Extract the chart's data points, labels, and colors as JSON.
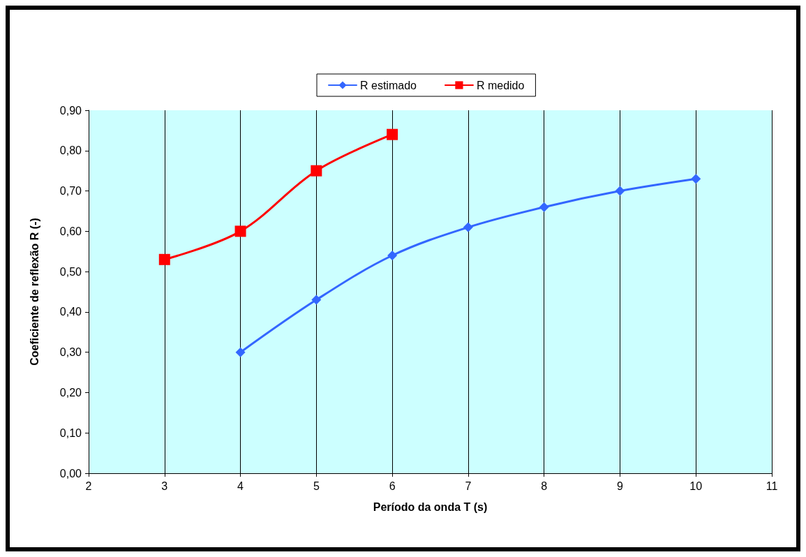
{
  "chart_data": {
    "type": "line",
    "xlabel": "Período da onda T (s)",
    "ylabel": "Coeficiente de reflexão R (-)",
    "xlim": [
      2,
      11
    ],
    "xticks": [
      2,
      3,
      4,
      5,
      6,
      7,
      8,
      9,
      10,
      11
    ],
    "ylim": [
      0,
      0.9
    ],
    "yticks": [
      {
        "value": 0,
        "label": "0,00"
      },
      {
        "value": 0.1,
        "label": "0,10"
      },
      {
        "value": 0.2,
        "label": "0,20"
      },
      {
        "value": 0.3,
        "label": "0,30"
      },
      {
        "value": 0.4,
        "label": "0,40"
      },
      {
        "value": 0.5,
        "label": "0,50"
      },
      {
        "value": 0.6,
        "label": "0,60"
      },
      {
        "value": 0.7,
        "label": "0,70"
      },
      {
        "value": 0.8,
        "label": "0,80"
      },
      {
        "value": 0.9,
        "label": "0,90"
      }
    ],
    "grid": "x",
    "legend": "top",
    "line_style": "solid",
    "series": [
      {
        "name": "R estimado",
        "color": "#3366ff",
        "marker": "diamond",
        "x": [
          4,
          5,
          6,
          7,
          8,
          9,
          10
        ],
        "values": [
          0.3,
          0.43,
          0.54,
          0.61,
          0.66,
          0.7,
          0.73
        ]
      },
      {
        "name": "R medido",
        "color": "#ff0000",
        "marker": "square",
        "x": [
          3,
          4,
          5,
          6
        ],
        "values": [
          0.53,
          0.6,
          0.75,
          0.84
        ]
      }
    ]
  }
}
